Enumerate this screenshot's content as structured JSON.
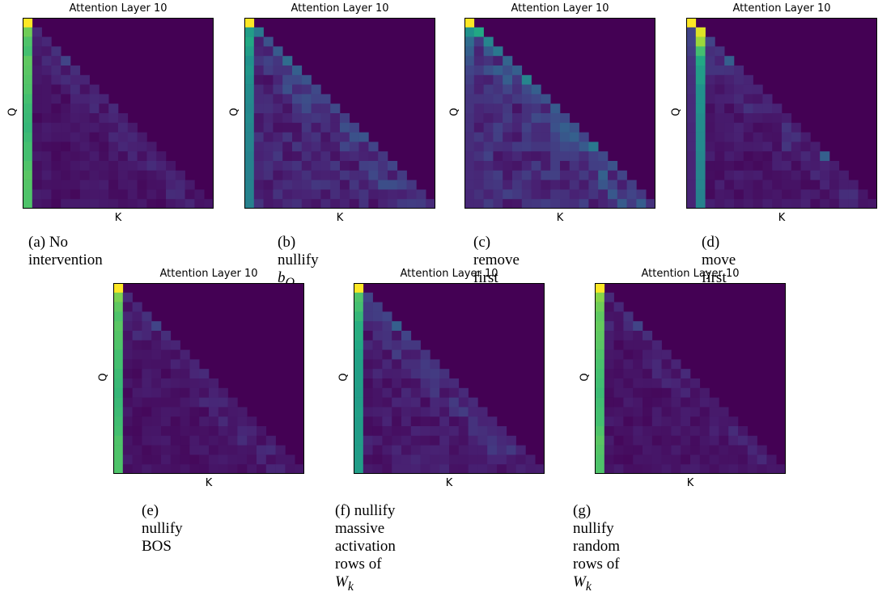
{
  "colors": {
    "colormap": "viridis",
    "low": "#440154",
    "high": "#fde725",
    "frame": "#000000"
  },
  "chart_data": [
    {
      "type": "heatmap",
      "id": "a",
      "title": "Attention Layer 10",
      "xlabel": "K",
      "ylabel": "Q",
      "caption": "(a) No intervention",
      "caption_math": "",
      "caption_after": "",
      "caption_line2": "",
      "caption_line2_math": "",
      "n": 20,
      "mask": "causal-lower-triangular",
      "first_col": [
        1.0,
        0.78,
        0.72,
        0.7,
        0.75,
        0.74,
        0.73,
        0.72,
        0.7,
        0.68,
        0.67,
        0.66,
        0.68,
        0.7,
        0.7,
        0.72,
        0.74,
        0.73,
        0.72,
        0.72
      ],
      "diag": [
        0.0,
        0.12,
        0.11,
        0.14,
        0.2,
        0.13,
        0.1,
        0.09,
        0.1,
        0.12,
        0.08,
        0.07,
        0.07,
        0.07,
        0.06,
        0.06,
        0.08,
        0.07,
        0.06,
        0.06
      ],
      "off": 0.05
    },
    {
      "type": "heatmap",
      "id": "b",
      "title": "Attention Layer 10",
      "xlabel": "K",
      "ylabel": "Q",
      "caption": "(b) nullify ",
      "caption_math": "b",
      "caption_sub": "Q",
      "caption_after": "",
      "caption_line2": "",
      "caption_line2_math": "",
      "n": 20,
      "mask": "causal-lower-triangular",
      "first_col": [
        1.0,
        0.55,
        0.6,
        0.55,
        0.5,
        0.52,
        0.5,
        0.48,
        0.47,
        0.46,
        0.47,
        0.46,
        0.45,
        0.45,
        0.44,
        0.44,
        0.43,
        0.44,
        0.44,
        0.43
      ],
      "diag": [
        0.0,
        0.4,
        0.25,
        0.28,
        0.35,
        0.3,
        0.26,
        0.22,
        0.2,
        0.22,
        0.18,
        0.2,
        0.26,
        0.2,
        0.16,
        0.2,
        0.17,
        0.16,
        0.14,
        0.12
      ],
      "off": 0.1
    },
    {
      "type": "heatmap",
      "id": "c",
      "title": "Attention Layer 10",
      "xlabel": "K",
      "ylabel": "Q",
      "caption": "(c) remove first EPE",
      "caption_math": "",
      "caption_after": "",
      "caption_line2": "",
      "caption_line2_math": "",
      "n": 20,
      "mask": "causal-lower-triangular",
      "first_col": [
        1.0,
        0.5,
        0.35,
        0.3,
        0.25,
        0.2,
        0.18,
        0.16,
        0.15,
        0.15,
        0.14,
        0.14,
        0.13,
        0.13,
        0.12,
        0.12,
        0.12,
        0.12,
        0.11,
        0.11
      ],
      "diag": [
        0.0,
        0.6,
        0.45,
        0.4,
        0.32,
        0.3,
        0.45,
        0.3,
        0.25,
        0.28,
        0.22,
        0.25,
        0.2,
        0.4,
        0.22,
        0.25,
        0.2,
        0.18,
        0.16,
        0.14
      ],
      "off": 0.12
    },
    {
      "type": "heatmap",
      "id": "d",
      "title": "Attention Layer 10",
      "xlabel": "K",
      "ylabel": "Q",
      "caption": "(d) move first EPE",
      "caption_math": "",
      "caption_after": "",
      "caption_line2": "",
      "caption_line2_math": "",
      "n": 20,
      "mask": "causal-lower-triangular",
      "first_col": [
        1.0,
        0.2,
        0.2,
        0.18,
        0.15,
        0.14,
        0.13,
        0.13,
        0.12,
        0.12,
        0.12,
        0.11,
        0.11,
        0.11,
        0.1,
        0.1,
        0.1,
        0.1,
        0.1,
        0.1
      ],
      "second_col": [
        0.0,
        0.95,
        0.85,
        0.7,
        0.6,
        0.55,
        0.55,
        0.5,
        0.5,
        0.5,
        0.48,
        0.48,
        0.47,
        0.47,
        0.46,
        0.45,
        0.45,
        0.45,
        0.44,
        0.44
      ],
      "diag": [
        0.0,
        0.0,
        0.2,
        0.15,
        0.3,
        0.12,
        0.1,
        0.1,
        0.1,
        0.1,
        0.08,
        0.08,
        0.08,
        0.08,
        0.3,
        0.08,
        0.08,
        0.08,
        0.06,
        0.06
      ],
      "off": 0.06
    },
    {
      "type": "heatmap",
      "id": "e",
      "title": "Attention Layer 10",
      "xlabel": "K",
      "ylabel": "Q",
      "caption": "(e) nullify BOS",
      "caption_math": "",
      "caption_after": "",
      "caption_line2": "",
      "caption_line2_math": "",
      "n": 20,
      "mask": "causal-lower-triangular",
      "first_col": [
        1.0,
        0.8,
        0.75,
        0.72,
        0.74,
        0.73,
        0.72,
        0.7,
        0.7,
        0.68,
        0.67,
        0.66,
        0.67,
        0.68,
        0.69,
        0.7,
        0.72,
        0.72,
        0.72,
        0.72
      ],
      "diag": [
        0.0,
        0.12,
        0.11,
        0.14,
        0.2,
        0.13,
        0.1,
        0.09,
        0.1,
        0.12,
        0.08,
        0.07,
        0.07,
        0.07,
        0.06,
        0.06,
        0.08,
        0.07,
        0.06,
        0.06
      ],
      "off": 0.05
    },
    {
      "type": "heatmap",
      "id": "f",
      "title": "Attention Layer 10",
      "xlabel": "K",
      "ylabel": "Q",
      "caption": "(f) nullify massive activation",
      "caption_math": "",
      "caption_after": "",
      "caption_line2": "rows of ",
      "caption_line2_math": "W",
      "caption_line2_sub": "k",
      "n": 20,
      "mask": "causal-lower-triangular",
      "first_col": [
        1.0,
        0.72,
        0.7,
        0.66,
        0.62,
        0.62,
        0.6,
        0.58,
        0.57,
        0.56,
        0.56,
        0.55,
        0.55,
        0.56,
        0.55,
        0.55,
        0.55,
        0.55,
        0.55,
        0.55
      ],
      "diag": [
        0.0,
        0.2,
        0.18,
        0.2,
        0.3,
        0.2,
        0.16,
        0.15,
        0.14,
        0.14,
        0.12,
        0.12,
        0.12,
        0.1,
        0.1,
        0.1,
        0.1,
        0.1,
        0.08,
        0.08
      ],
      "off": 0.07
    },
    {
      "type": "heatmap",
      "id": "g",
      "title": "Attention Layer 10",
      "xlabel": "K",
      "ylabel": "Q",
      "caption": "(g) nullify random rows of",
      "caption_math": "",
      "caption_after": "",
      "caption_line2": "",
      "caption_line2_math": "W",
      "caption_line2_sub": "k",
      "n": 20,
      "mask": "causal-lower-triangular",
      "first_col": [
        1.0,
        0.82,
        0.78,
        0.75,
        0.76,
        0.75,
        0.74,
        0.72,
        0.71,
        0.7,
        0.69,
        0.68,
        0.69,
        0.7,
        0.7,
        0.72,
        0.74,
        0.73,
        0.72,
        0.72
      ],
      "diag": [
        0.0,
        0.12,
        0.11,
        0.14,
        0.2,
        0.13,
        0.1,
        0.09,
        0.1,
        0.12,
        0.08,
        0.07,
        0.07,
        0.07,
        0.06,
        0.06,
        0.08,
        0.07,
        0.06,
        0.06
      ],
      "off": 0.05
    }
  ]
}
